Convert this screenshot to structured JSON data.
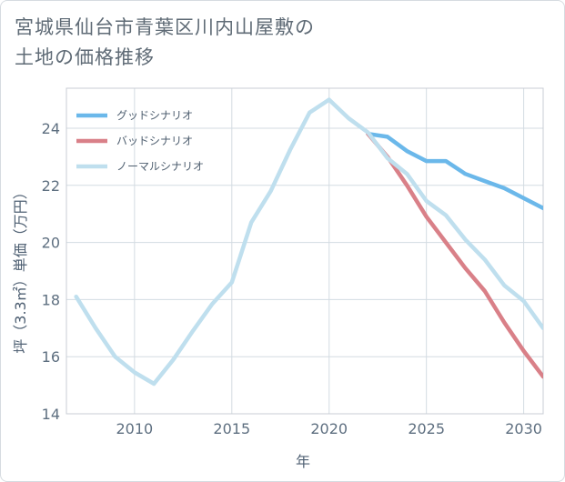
{
  "title_line1": "宮城県仙台市青葉区川内山屋敷の",
  "title_line2": "土地の価格推移",
  "chart_data": {
    "type": "line",
    "xlabel": "年",
    "ylabel": "坪（3.3㎡）単価（万円）",
    "xlim": [
      2006.5,
      2031
    ],
    "ylim": [
      14,
      25.4
    ],
    "xticks": [
      2010,
      2015,
      2020,
      2025,
      2030
    ],
    "yticks": [
      14,
      16,
      18,
      20,
      22,
      24
    ],
    "grid": true,
    "legend_position": "top-left",
    "series": [
      {
        "name": "グッドシナリオ",
        "color": "#6bb8ea",
        "x": [
          2022,
          2023,
          2024,
          2025,
          2026,
          2027,
          2028,
          2029,
          2030,
          2031
        ],
        "y": [
          23.8,
          23.7,
          23.2,
          22.85,
          22.85,
          22.4,
          22.15,
          21.9,
          21.55,
          21.2
        ]
      },
      {
        "name": "バッドシナリオ",
        "color": "#d98088",
        "x": [
          2022,
          2023,
          2024,
          2025,
          2026,
          2027,
          2028,
          2029,
          2030,
          2031
        ],
        "y": [
          23.8,
          23.0,
          22.0,
          20.9,
          20.0,
          19.1,
          18.3,
          17.2,
          16.2,
          15.3
        ]
      },
      {
        "name": "ノーマルシナリオ",
        "color": "#bfdfee",
        "x": [
          2007,
          2008,
          2009,
          2010,
          2011,
          2012,
          2013,
          2014,
          2015,
          2016,
          2017,
          2018,
          2019,
          2020,
          2021,
          2022,
          2023,
          2024,
          2025,
          2026,
          2027,
          2028,
          2029,
          2030,
          2031
        ],
        "y": [
          18.1,
          17.0,
          16.0,
          15.45,
          15.05,
          15.9,
          16.9,
          17.85,
          18.6,
          20.7,
          21.8,
          23.25,
          24.55,
          25.0,
          24.35,
          23.85,
          22.95,
          22.4,
          21.45,
          20.95,
          20.1,
          19.4,
          18.5,
          17.95,
          17.0
        ]
      }
    ]
  }
}
